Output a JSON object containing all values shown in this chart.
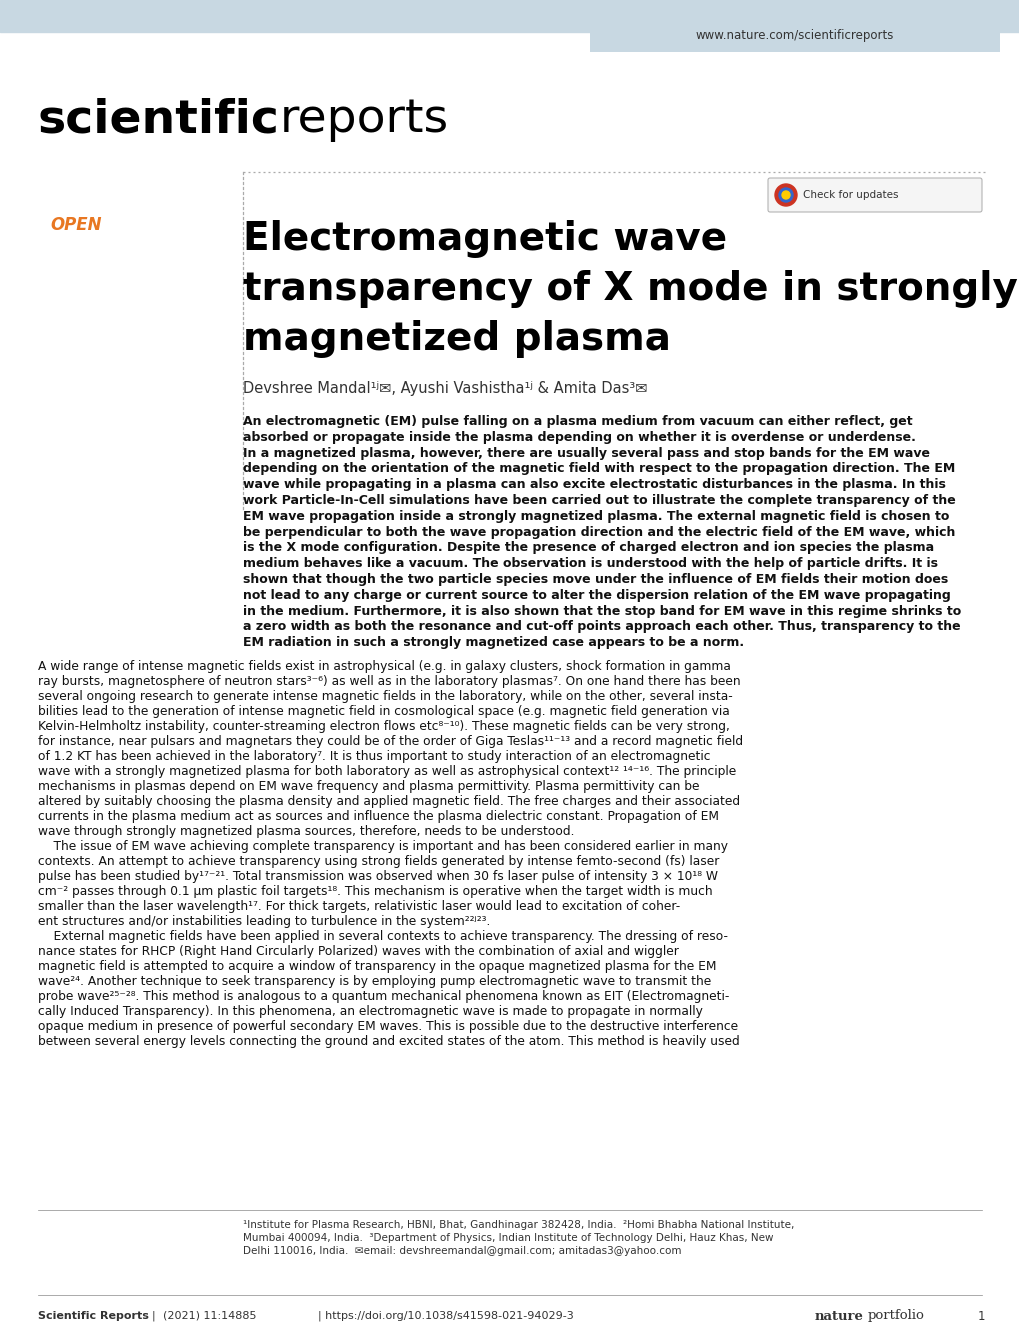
{
  "bg_color": "#ffffff",
  "header_bg": "#c8d8e2",
  "header_url": "www.nature.com/scientificreports",
  "header_url_color": "#333333",
  "open_color": "#e87722",
  "article_title_color": "#000000",
  "authors_color": "#333333",
  "abstract_color": "#111111",
  "body_color": "#111111",
  "footnote_color": "#333333",
  "footer_color": "#333333",
  "dotted_line_color": "#aaaaaa",
  "separator_color": "#888888",
  "footer_journal": "Scientific Reports",
  "footer_year": "(2021) 11:14885",
  "footer_doi": "| https://doi.org/10.1038/s41598-021-94029-3",
  "footer_page": "1"
}
